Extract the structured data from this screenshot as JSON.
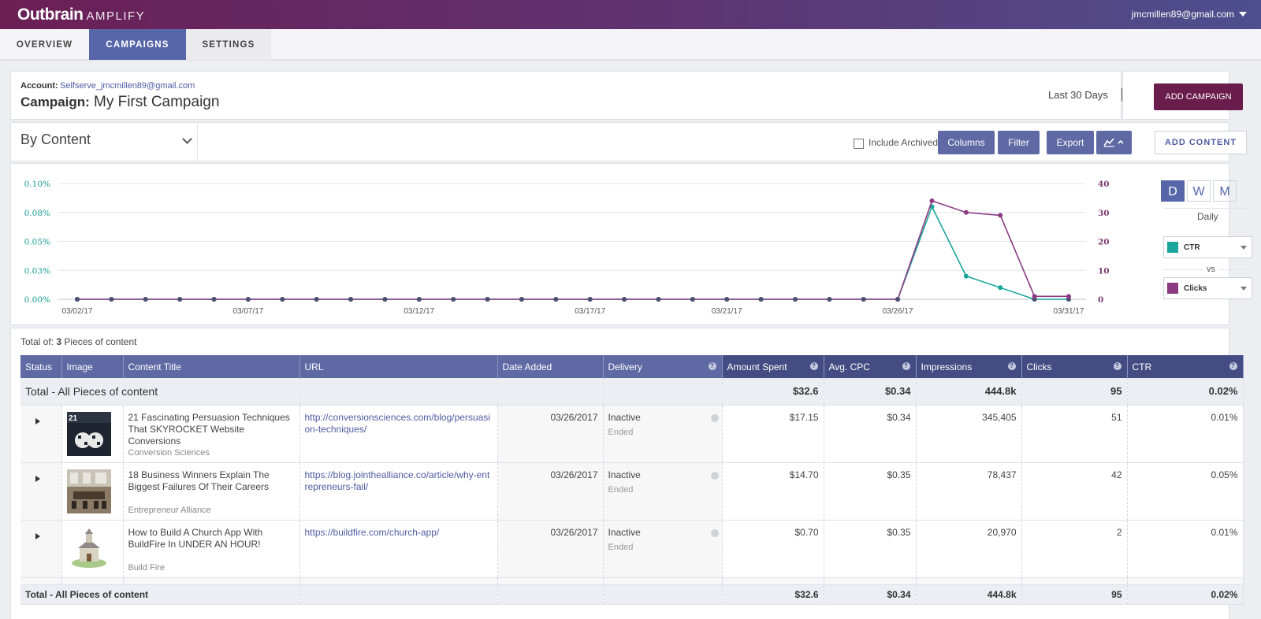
{
  "app": {
    "logo": "Outbrain",
    "product": "AMPLIFY",
    "user_email": "jmcmillen89@gmail.com"
  },
  "nav": {
    "tabs": [
      {
        "label": "OVERVIEW"
      },
      {
        "label": "CAMPAIGNS"
      },
      {
        "label": "SETTINGS"
      }
    ],
    "active": "CAMPAIGNS"
  },
  "header": {
    "account_label": "Account:",
    "account_value": "Selfserve_jmcmillen89@gmail.com",
    "campaign_label": "Campaign:",
    "campaign_name": "My First Campaign",
    "date_range": "Last 30 Days",
    "add_campaign": "ADD CAMPAIGN"
  },
  "toolbar": {
    "view": "By Content",
    "include_archived": "Include Archived",
    "columns": "Columns",
    "filter": "Filter",
    "export": "Export",
    "add_content": "ADD CONTENT"
  },
  "chart_controls": {
    "periods": [
      "D",
      "W",
      "M"
    ],
    "active_period": "D",
    "period_label": "Daily",
    "metric_left": "CTR",
    "vs": "vs",
    "metric_right": "Clicks",
    "color_left": "#1aa69a",
    "color_right": "#8a3b82"
  },
  "chart_data": {
    "type": "line",
    "x": [
      "03/02/17",
      "03/03/17",
      "03/04/17",
      "03/05/17",
      "03/06/17",
      "03/07/17",
      "03/08/17",
      "03/09/17",
      "03/10/17",
      "03/11/17",
      "03/12/17",
      "03/13/17",
      "03/14/17",
      "03/15/17",
      "03/16/17",
      "03/17/17",
      "03/18/17",
      "03/19/17",
      "03/20/17",
      "03/21/17",
      "03/22/17",
      "03/23/17",
      "03/24/17",
      "03/25/17",
      "03/26/17",
      "03/27/17",
      "03/28/17",
      "03/29/17",
      "03/30/17",
      "03/31/17"
    ],
    "x_ticks": [
      "03/02/17",
      "03/07/17",
      "03/12/17",
      "03/17/17",
      "03/21/17",
      "03/26/17",
      "03/31/17"
    ],
    "series": [
      {
        "name": "CTR",
        "axis": "left",
        "color": "#1aa69a",
        "values": [
          0,
          0,
          0,
          0,
          0,
          0,
          0,
          0,
          0,
          0,
          0,
          0,
          0,
          0,
          0,
          0,
          0,
          0,
          0,
          0,
          0,
          0,
          0,
          0,
          0,
          0.08,
          0.02,
          0.01,
          0,
          0
        ]
      },
      {
        "name": "Clicks",
        "axis": "right",
        "color": "#8a3b82",
        "values": [
          0,
          0,
          0,
          0,
          0,
          0,
          0,
          0,
          0,
          0,
          0,
          0,
          0,
          0,
          0,
          0,
          0,
          0,
          0,
          0,
          0,
          0,
          0,
          0,
          0,
          34,
          30,
          29,
          1,
          1
        ]
      }
    ],
    "y_left": {
      "ticks": [
        "0.00%",
        "0.03%",
        "0.05%",
        "0.08%",
        "0.10%"
      ],
      "range": [
        0,
        0.1
      ]
    },
    "y_right": {
      "ticks": [
        "0",
        "10",
        "20",
        "30",
        "40"
      ],
      "range": [
        0,
        40
      ]
    },
    "grid": true
  },
  "table": {
    "total_of_prefix": "Total of:",
    "total_count": "3",
    "total_suffix": "Pieces of content",
    "columns": [
      "Status",
      "Image",
      "Content Title",
      "URL",
      "Date Added",
      "Delivery",
      "Amount Spent",
      "Avg. CPC",
      "Impressions",
      "Clicks",
      "CTR"
    ],
    "total_label": "Total - All Pieces of content",
    "totals": {
      "spent": "$32.6",
      "cpc": "$0.34",
      "impressions": "444.8k",
      "clicks": "95",
      "ctr": "0.02%"
    },
    "rows": [
      {
        "title": "21 Fascinating Persuasion Techniques That SKYROCKET Website Conversions",
        "source": "Conversion Sciences",
        "url": "http://conversionsciences.com/blog/persuasion-techniques/",
        "date": "03/26/2017",
        "delivery": "Inactive",
        "delivery_sub": "Ended",
        "spent": "$17.15",
        "cpc": "$0.34",
        "impressions": "345,405",
        "clicks": "51",
        "ctr": "0.01%"
      },
      {
        "title": "18 Business Winners Explain The Biggest Failures Of Their Careers",
        "source": "Entrepreneur Alliance",
        "url": "https://blog.jointhealliance.co/article/why-entrepreneurs-fail/",
        "date": "03/26/2017",
        "delivery": "Inactive",
        "delivery_sub": "Ended",
        "spent": "$14.70",
        "cpc": "$0.35",
        "impressions": "78,437",
        "clicks": "42",
        "ctr": "0.05%"
      },
      {
        "title": "How to Build A Church App With BuildFire In UNDER AN HOUR!",
        "source": "Build Fire",
        "url": "https://buildfire.com/church-app/",
        "date": "03/26/2017",
        "delivery": "Inactive",
        "delivery_sub": "Ended",
        "spent": "$0.70",
        "cpc": "$0.35",
        "impressions": "20,970",
        "clicks": "2",
        "ctr": "0.01%"
      }
    ]
  }
}
